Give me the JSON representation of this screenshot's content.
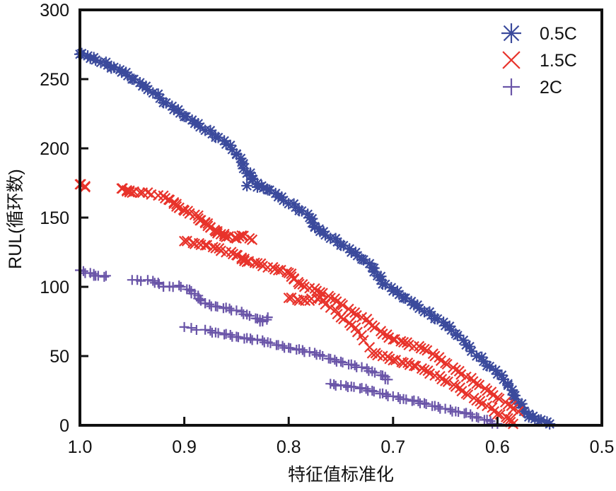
{
  "chart_data": {
    "type": "scatter",
    "title": "",
    "xlabel": "特征值标准化",
    "ylabel": "RUL(循环数)",
    "xlim": [
      1.0,
      0.5
    ],
    "ylim": [
      0,
      300
    ],
    "x_reversed": true,
    "xticks": [
      "1.0",
      "0.9",
      "0.8",
      "0.7",
      "0.6",
      "0.5"
    ],
    "xtick_values": [
      1.0,
      0.9,
      0.8,
      0.7,
      0.6,
      0.5
    ],
    "yticks": [
      "0",
      "50",
      "100",
      "150",
      "200",
      "250",
      "300"
    ],
    "ytick_values": [
      0,
      50,
      100,
      150,
      200,
      250,
      300
    ],
    "grid": false,
    "legend_position": "top-right",
    "series": [
      {
        "name": "0.5C",
        "marker": "asterisk",
        "color": "#3b4a9c",
        "segments": [
          [
            [
              1.0,
              268
            ],
            [
              0.99,
              265
            ],
            [
              0.98,
              262
            ],
            [
              0.97,
              258
            ],
            [
              0.96,
              255
            ],
            [
              0.95,
              250
            ],
            [
              0.94,
              245
            ],
            [
              0.93,
              240
            ],
            [
              0.92,
              233
            ],
            [
              0.91,
              228
            ],
            [
              0.9,
              223
            ],
            [
              0.89,
              218
            ],
            [
              0.88,
              213
            ],
            [
              0.87,
              208
            ],
            [
              0.86,
              203
            ],
            [
              0.85,
              196
            ],
            [
              0.845,
              190
            ],
            [
              0.84,
              182
            ],
            [
              0.835,
              178
            ],
            [
              0.83,
              172
            ],
            [
              0.82,
              170
            ],
            [
              0.81,
              165
            ],
            [
              0.8,
              160
            ],
            [
              0.79,
              155
            ],
            [
              0.78,
              150
            ],
            [
              0.775,
              143
            ],
            [
              0.77,
              140
            ],
            [
              0.76,
              135
            ],
            [
              0.75,
              130
            ],
            [
              0.74,
              125
            ],
            [
              0.73,
              120
            ],
            [
              0.72,
              114
            ],
            [
              0.715,
              108
            ],
            [
              0.71,
              102
            ],
            [
              0.7,
              97
            ],
            [
              0.69,
              92
            ],
            [
              0.68,
              87
            ],
            [
              0.67,
              82
            ],
            [
              0.66,
              77
            ],
            [
              0.65,
              72
            ],
            [
              0.64,
              66
            ],
            [
              0.63,
              58
            ],
            [
              0.62,
              50
            ],
            [
              0.61,
              43
            ],
            [
              0.6,
              37
            ],
            [
              0.59,
              30
            ],
            [
              0.585,
              22
            ],
            [
              0.58,
              16
            ],
            [
              0.575,
              10
            ],
            [
              0.57,
              6
            ],
            [
              0.56,
              3
            ],
            [
              0.55,
              1
            ]
          ],
          [
            [
              0.84,
              173
            ]
          ]
        ]
      },
      {
        "name": "1.5C",
        "marker": "x",
        "color": "#e8332b",
        "segments": [
          [
            [
              1.0,
              174
            ],
            [
              0.995,
              172
            ]
          ],
          [
            [
              0.96,
              171
            ],
            [
              0.955,
              169
            ],
            [
              0.95,
              168
            ],
            [
              0.94,
              168
            ],
            [
              0.925,
              166
            ],
            [
              0.915,
              163
            ],
            [
              0.91,
              160
            ],
            [
              0.905,
              157
            ],
            [
              0.9,
              155
            ],
            [
              0.89,
              152
            ],
            [
              0.885,
              148
            ],
            [
              0.88,
              146
            ],
            [
              0.875,
              143
            ],
            [
              0.87,
              140
            ],
            [
              0.865,
              138
            ],
            [
              0.86,
              136
            ],
            [
              0.85,
              135
            ],
            [
              0.845,
              137
            ],
            [
              0.835,
              134
            ]
          ],
          [
            [
              0.9,
              133
            ],
            [
              0.89,
              131
            ],
            [
              0.88,
              130
            ],
            [
              0.87,
              128
            ],
            [
              0.86,
              125
            ],
            [
              0.85,
              123
            ],
            [
              0.845,
              120
            ],
            [
              0.84,
              118
            ],
            [
              0.83,
              117
            ],
            [
              0.82,
              114
            ],
            [
              0.81,
              112
            ],
            [
              0.8,
              110
            ],
            [
              0.795,
              106
            ],
            [
              0.79,
              102
            ],
            [
              0.78,
              99
            ],
            [
              0.77,
              96
            ],
            [
              0.76,
              92
            ],
            [
              0.75,
              88
            ],
            [
              0.74,
              82
            ],
            [
              0.73,
              78
            ],
            [
              0.72,
              72
            ],
            [
              0.71,
              66
            ],
            [
              0.7,
              62
            ],
            [
              0.69,
              60
            ],
            [
              0.68,
              57
            ],
            [
              0.67,
              55
            ],
            [
              0.66,
              50
            ],
            [
              0.65,
              45
            ],
            [
              0.64,
              40
            ],
            [
              0.63,
              35
            ],
            [
              0.62,
              30
            ],
            [
              0.61,
              25
            ],
            [
              0.6,
              20
            ],
            [
              0.59,
              15
            ],
            [
              0.58,
              10
            ]
          ],
          [
            [
              0.8,
              92
            ],
            [
              0.79,
              90
            ],
            [
              0.78,
              90
            ],
            [
              0.77,
              92
            ],
            [
              0.76,
              85
            ],
            [
              0.75,
              78
            ],
            [
              0.74,
              72
            ],
            [
              0.73,
              65
            ],
            [
              0.72,
              52
            ],
            [
              0.71,
              50
            ],
            [
              0.7,
              47
            ],
            [
              0.69,
              45
            ],
            [
              0.68,
              43
            ],
            [
              0.67,
              40
            ],
            [
              0.66,
              36
            ],
            [
              0.65,
              32
            ],
            [
              0.64,
              28
            ],
            [
              0.63,
              23
            ],
            [
              0.62,
              18
            ],
            [
              0.61,
              14
            ],
            [
              0.6,
              8
            ],
            [
              0.59,
              5
            ],
            [
              0.585,
              1
            ]
          ]
        ]
      },
      {
        "name": "2C",
        "marker": "plus",
        "color": "#6a55a8",
        "segments": [
          [
            [
              1.0,
              112
            ],
            [
              0.99,
              110
            ],
            [
              0.985,
              108
            ],
            [
              0.975,
              108
            ]
          ],
          [
            [
              0.95,
              105
            ],
            [
              0.935,
              105
            ],
            [
              0.925,
              103
            ],
            [
              0.92,
              100
            ],
            [
              0.905,
              101
            ],
            [
              0.895,
              98
            ],
            [
              0.89,
              95
            ],
            [
              0.885,
              91
            ],
            [
              0.88,
              88
            ],
            [
              0.87,
              86
            ],
            [
              0.86,
              85
            ],
            [
              0.85,
              83
            ],
            [
              0.84,
              80
            ],
            [
              0.83,
              77
            ],
            [
              0.825,
              75
            ],
            [
              0.82,
              78
            ]
          ],
          [
            [
              0.9,
              71
            ],
            [
              0.88,
              69
            ],
            [
              0.87,
              67
            ],
            [
              0.86,
              66
            ],
            [
              0.85,
              64
            ],
            [
              0.84,
              63
            ],
            [
              0.83,
              62
            ],
            [
              0.82,
              60
            ],
            [
              0.81,
              58
            ],
            [
              0.8,
              56
            ],
            [
              0.79,
              55
            ],
            [
              0.78,
              53
            ],
            [
              0.77,
              51
            ],
            [
              0.76,
              48
            ],
            [
              0.75,
              46
            ],
            [
              0.74,
              44
            ],
            [
              0.73,
              42
            ],
            [
              0.72,
              39
            ],
            [
              0.71,
              36
            ],
            [
              0.705,
              33
            ]
          ],
          [
            [
              0.76,
              30
            ],
            [
              0.75,
              29
            ],
            [
              0.74,
              28
            ],
            [
              0.73,
              27
            ],
            [
              0.72,
              25
            ],
            [
              0.71,
              23
            ],
            [
              0.7,
              21
            ],
            [
              0.69,
              19
            ],
            [
              0.68,
              18
            ],
            [
              0.67,
              16
            ],
            [
              0.66,
              14
            ],
            [
              0.65,
              12
            ],
            [
              0.64,
              10
            ],
            [
              0.63,
              9
            ],
            [
              0.62,
              6
            ],
            [
              0.61,
              4
            ],
            [
              0.6,
              1
            ]
          ]
        ]
      }
    ]
  }
}
